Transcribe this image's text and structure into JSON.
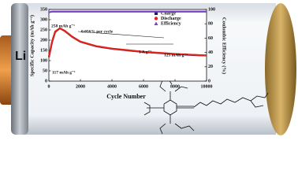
{
  "chart_data": {
    "type": "line",
    "xlabel": "Cycle Number",
    "ylabel": "Specific Capacity (mAh g⁻¹)",
    "y2label": "Coulombic Efficiency (%)",
    "x": [
      0,
      200,
      400,
      700,
      1000,
      1500,
      2000,
      3000,
      4000,
      5000,
      6000,
      7000,
      8000,
      9000,
      10000
    ],
    "series": [
      {
        "name": "Charge",
        "color": "#1c1c5a",
        "values": [
          117,
          190,
          240,
          258,
          245,
          215,
          192,
          170,
          158,
          150,
          142,
          137,
          132,
          128,
          125
        ]
      },
      {
        "name": "Discharge",
        "color": "#e2231a",
        "values": [
          117,
          192,
          242,
          258,
          246,
          216,
          193,
          171,
          159,
          151,
          143,
          138,
          133,
          129,
          125
        ]
      },
      {
        "name": "Efficiency",
        "color": "#7a3fc8",
        "axis": "y2",
        "values": [
          96,
          97,
          97,
          97,
          97,
          97,
          97,
          97,
          97,
          97,
          97,
          97,
          97,
          97,
          97
        ]
      }
    ],
    "xlim": [
      0,
      10000
    ],
    "xticks": [
      0,
      2000,
      4000,
      6000,
      8000,
      10000
    ],
    "ylim": [
      0,
      350
    ],
    "yticks": [
      0,
      50,
      100,
      150,
      200,
      250,
      300,
      350
    ],
    "y2lim": [
      0,
      100
    ],
    "y2ticks": [
      0,
      20,
      40,
      60,
      80,
      100
    ],
    "legend": "upper right",
    "annotations": [
      "258 mAh g⁻¹",
      "0.056% per cycle",
      "117 mAh g⁻¹",
      "1 A g⁻¹",
      "125 mAh g⁻¹"
    ]
  },
  "battery": {
    "anode": "Li"
  }
}
